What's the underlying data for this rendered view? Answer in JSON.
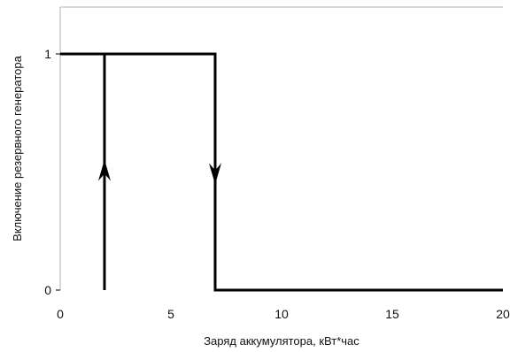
{
  "chart_data": {
    "type": "line",
    "title": "",
    "xlabel": "Заряд аккумулятора, кВт*час",
    "ylabel": "Включение резервного генератора",
    "xlim": [
      0,
      20
    ],
    "ylim": [
      0,
      1.2
    ],
    "x_ticks": [
      0,
      5,
      10,
      15,
      20
    ],
    "x_tick_labels": [
      "0",
      "5",
      "10",
      "15",
      "20"
    ],
    "y_ticks": [
      0,
      1
    ],
    "y_tick_labels": [
      "0",
      "1"
    ],
    "grid": false,
    "legend": "none",
    "line_color": "#000000",
    "frame_color": "#b0b0b0",
    "series": [
      {
        "values_xy": [
          [
            0,
            1
          ],
          [
            7,
            1
          ],
          [
            7,
            0
          ],
          [
            20,
            0
          ]
        ]
      },
      {
        "values_xy": [
          [
            2,
            0
          ],
          [
            2,
            1
          ]
        ]
      }
    ],
    "arrows": [
      {
        "x": 2,
        "y": 0.5,
        "direction": "up"
      },
      {
        "x": 7,
        "y": 0.5,
        "direction": "down"
      }
    ]
  }
}
